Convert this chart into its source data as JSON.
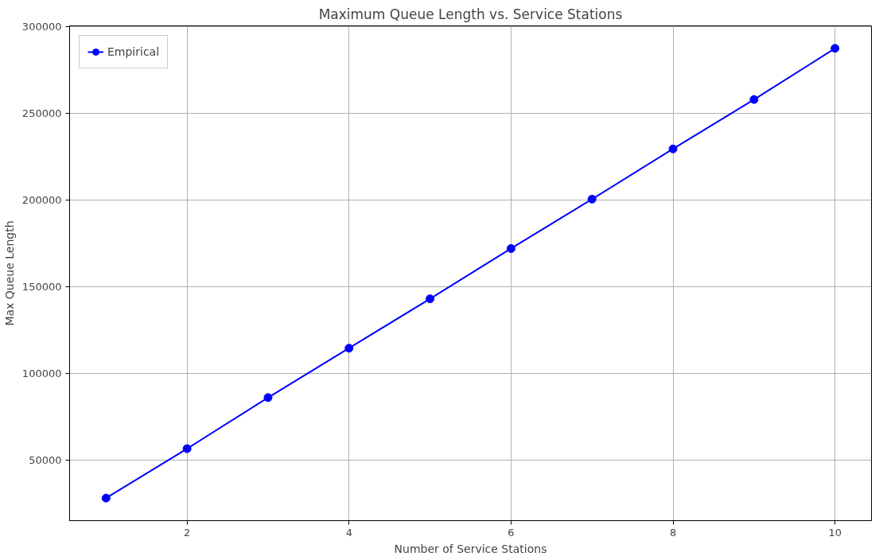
{
  "chart_data": {
    "type": "line",
    "title": "Maximum Queue Length vs. Service Stations",
    "xlabel": "Number of Service Stations",
    "ylabel": "Max Queue Length",
    "x": [
      1,
      2,
      3,
      4,
      5,
      6,
      7,
      8,
      9,
      10
    ],
    "series": [
      {
        "name": "Empirical",
        "color": "#0000ff",
        "values": [
          28000,
          56500,
          86000,
          114500,
          143000,
          172000,
          200500,
          229500,
          258000,
          287500
        ]
      }
    ],
    "xlim": [
      0.55,
      10.45
    ],
    "ylim": [
      15000,
      300500
    ],
    "xticks": [
      2,
      4,
      6,
      8,
      10
    ],
    "yticks": [
      50000,
      100000,
      150000,
      200000,
      250000,
      300000
    ],
    "grid": true,
    "legend": "top left",
    "marker": "circle",
    "line_style": "solid"
  }
}
